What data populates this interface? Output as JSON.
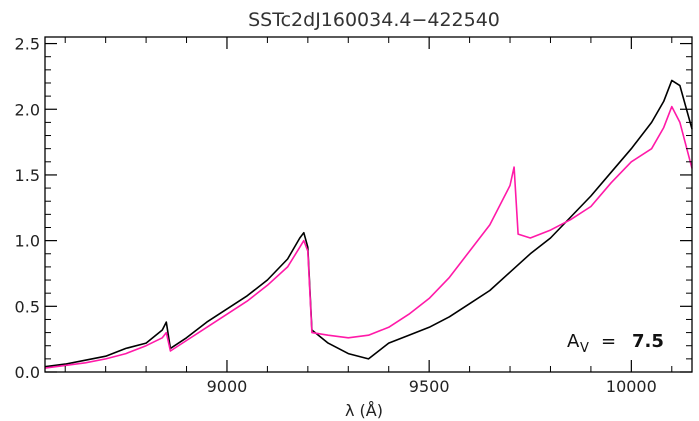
{
  "chart_data": {
    "type": "line",
    "title": "SSTc2dJ160034.4−422540",
    "xlabel": "λ (Å)",
    "ylabel": "",
    "xlim": [
      8550,
      10150
    ],
    "ylim": [
      0.0,
      2.55
    ],
    "x_ticks": [
      9000,
      9500,
      10000
    ],
    "y_ticks": [
      0.0,
      0.5,
      1.0,
      1.5,
      2.0,
      2.5
    ],
    "x_tick_labels": [
      "9000",
      "9500",
      "10000"
    ],
    "y_tick_labels": [
      "0.0",
      "0.5",
      "1.0",
      "1.5",
      "2.0",
      "2.5"
    ],
    "grid": false,
    "annotation": {
      "label": "A",
      "subscript": "V",
      "equals": "=",
      "value": "7.5"
    },
    "series": [
      {
        "color": "#000000",
        "x": [
          8550,
          8600,
          8650,
          8700,
          8750,
          8800,
          8840,
          8850,
          8860,
          8900,
          8950,
          9000,
          9050,
          9100,
          9150,
          9180,
          9190,
          9200,
          9210,
          9250,
          9300,
          9350,
          9400,
          9450,
          9500,
          9550,
          9600,
          9650,
          9700,
          9750,
          9800,
          9850,
          9900,
          9950,
          10000,
          10050,
          10080,
          10100,
          10120,
          10150
        ],
        "values": [
          0.04,
          0.06,
          0.09,
          0.12,
          0.18,
          0.22,
          0.32,
          0.38,
          0.18,
          0.26,
          0.38,
          0.48,
          0.58,
          0.7,
          0.86,
          1.02,
          1.06,
          0.95,
          0.32,
          0.22,
          0.14,
          0.1,
          0.22,
          0.28,
          0.34,
          0.42,
          0.52,
          0.62,
          0.76,
          0.9,
          1.02,
          1.18,
          1.34,
          1.52,
          1.7,
          1.9,
          2.06,
          2.22,
          2.18,
          1.85
        ]
      },
      {
        "color": "#ff1aa8",
        "x": [
          8550,
          8600,
          8650,
          8700,
          8750,
          8800,
          8840,
          8850,
          8860,
          8900,
          8950,
          9000,
          9050,
          9100,
          9150,
          9180,
          9190,
          9200,
          9210,
          9250,
          9300,
          9350,
          9400,
          9450,
          9500,
          9550,
          9600,
          9650,
          9700,
          9710,
          9720,
          9750,
          9800,
          9850,
          9900,
          9950,
          10000,
          10050,
          10080,
          10100,
          10120,
          10150
        ],
        "values": [
          0.03,
          0.05,
          0.07,
          0.1,
          0.14,
          0.2,
          0.26,
          0.3,
          0.16,
          0.24,
          0.34,
          0.44,
          0.54,
          0.66,
          0.8,
          0.95,
          1.0,
          0.92,
          0.3,
          0.28,
          0.26,
          0.28,
          0.34,
          0.44,
          0.56,
          0.72,
          0.92,
          1.12,
          1.42,
          1.56,
          1.05,
          1.02,
          1.08,
          1.16,
          1.26,
          1.44,
          1.6,
          1.7,
          1.86,
          2.02,
          1.9,
          1.55
        ]
      }
    ]
  }
}
